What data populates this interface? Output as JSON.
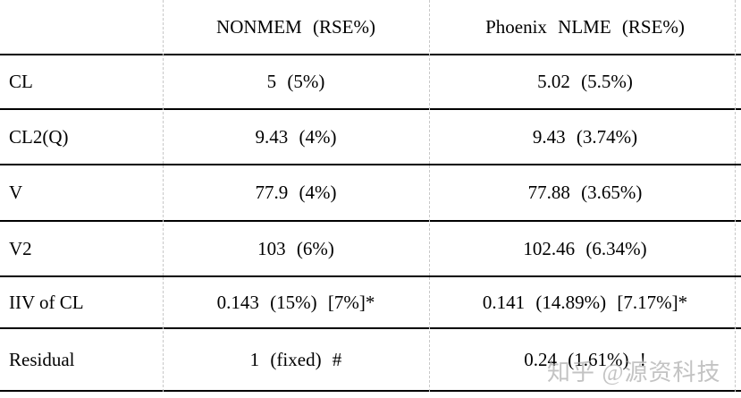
{
  "chart_data": {
    "type": "table",
    "title": "",
    "columns": [
      "",
      "NONMEM (RSE%)",
      "Phoenix NLME (RSE%)"
    ],
    "rows": [
      {
        "param": "CL",
        "nonmem": "5 (5%)",
        "phoenix": "5.02 (5.5%)"
      },
      {
        "param": "CL2(Q)",
        "nonmem": "9.43 (4%)",
        "phoenix": "9.43 (3.74%)"
      },
      {
        "param": "V",
        "nonmem": "77.9 (4%)",
        "phoenix": "77.88 (3.65%)"
      },
      {
        "param": "V2",
        "nonmem": "103 (6%)",
        "phoenix": "102.46 (6.34%)"
      },
      {
        "param": "IIV of CL",
        "nonmem": "0.143 (15%) [7%]*",
        "phoenix": "0.141 (14.89%) [7.17%]*"
      },
      {
        "param": "Residual",
        "nonmem": "1 (fixed) #",
        "phoenix": "0.24 (1.61%) !"
      }
    ],
    "layout": {
      "column_dividers": "dashed-gray",
      "row_dividers": "solid-black",
      "value_alignment": "center",
      "param_alignment": "left"
    }
  },
  "watermark": {
    "text": "知乎 @源资科技",
    "color": "#aaaaaa"
  },
  "colors": {
    "background": "#ffffff",
    "text": "#000000",
    "row_border": "#000000",
    "column_divider": "#c8c8c8"
  }
}
